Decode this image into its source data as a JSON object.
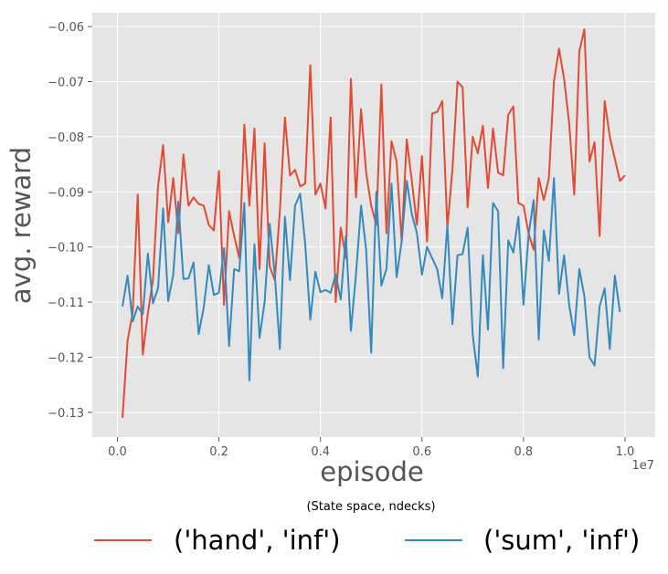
{
  "chart_data": {
    "type": "line",
    "xlabel": "episode",
    "ylabel": "avg. reward",
    "x_offset_text": "1e7",
    "xlim": [
      -0.0495,
      1.0595
    ],
    "ylim": [
      -0.1345,
      -0.0575
    ],
    "xticks": [
      0.0,
      0.2,
      0.4,
      0.6,
      0.8,
      1.0
    ],
    "xtick_labels": [
      "0.0",
      "0.2",
      "0.4",
      "0.6",
      "0.8",
      "1.0"
    ],
    "yticks": [
      -0.13,
      -0.12,
      -0.11,
      -0.1,
      -0.09,
      -0.08,
      -0.07,
      -0.06
    ],
    "ytick_labels": [
      "−0.13",
      "−0.12",
      "−0.11",
      "−0.10",
      "−0.09",
      "−0.08",
      "−0.07",
      "−0.06"
    ],
    "grid": true,
    "legend_title": "(State space, ndecks)",
    "legend_position": "bottom",
    "colors": {
      "background": "#e5e5e5",
      "grid": "#ffffff",
      "tick": "#555555"
    },
    "x_units": "fraction of 1e7 episodes",
    "x": [
      0.01,
      0.02,
      0.03,
      0.04,
      0.05,
      0.06,
      0.07,
      0.08,
      0.09,
      0.1,
      0.11,
      0.12,
      0.13,
      0.14,
      0.15,
      0.16,
      0.17,
      0.18,
      0.19,
      0.2,
      0.21,
      0.22,
      0.23,
      0.24,
      0.25,
      0.26,
      0.27,
      0.28,
      0.29,
      0.3,
      0.31,
      0.32,
      0.33,
      0.34,
      0.35,
      0.36,
      0.37,
      0.38,
      0.39,
      0.4,
      0.41,
      0.42,
      0.43,
      0.44,
      0.45,
      0.46,
      0.47,
      0.48,
      0.49,
      0.5,
      0.51,
      0.52,
      0.53,
      0.54,
      0.55,
      0.56,
      0.57,
      0.58,
      0.59,
      0.6,
      0.61,
      0.62,
      0.63,
      0.64,
      0.65,
      0.66,
      0.67,
      0.68,
      0.69,
      0.7,
      0.71,
      0.72,
      0.73,
      0.74,
      0.75,
      0.76,
      0.77,
      0.78,
      0.79,
      0.8,
      0.81,
      0.82,
      0.83,
      0.84,
      0.85,
      0.86,
      0.87,
      0.88,
      0.89,
      0.9,
      0.91,
      0.92,
      0.93,
      0.94,
      0.95,
      0.96,
      0.97,
      0.98,
      0.99,
      1.0
    ],
    "series": [
      {
        "name": "('hand', 'inf')",
        "color": "#E24A33",
        "values": [
          -0.131,
          -0.117,
          -0.112,
          -0.0905,
          -0.1195,
          -0.112,
          -0.106,
          -0.089,
          -0.0815,
          -0.0955,
          -0.0875,
          -0.0975,
          -0.0832,
          -0.0925,
          -0.091,
          -0.0922,
          -0.0925,
          -0.096,
          -0.097,
          -0.0862,
          -0.1105,
          -0.0935,
          -0.098,
          -0.102,
          -0.0778,
          -0.0925,
          -0.0785,
          -0.104,
          -0.0812,
          -0.1035,
          -0.106,
          -0.0935,
          -0.0765,
          -0.087,
          -0.086,
          -0.089,
          -0.0885,
          -0.067,
          -0.0905,
          -0.0885,
          -0.093,
          -0.0765,
          -0.11,
          -0.0965,
          -0.102,
          -0.0695,
          -0.091,
          -0.075,
          -0.0865,
          -0.0925,
          -0.096,
          -0.0705,
          -0.0975,
          -0.0808,
          -0.0845,
          -0.099,
          -0.0805,
          -0.088,
          -0.096,
          -0.0835,
          -0.099,
          -0.0758,
          -0.0755,
          -0.0735,
          -0.0965,
          -0.086,
          -0.07,
          -0.071,
          -0.0928,
          -0.08,
          -0.083,
          -0.078,
          -0.0893,
          -0.0785,
          -0.0865,
          -0.087,
          -0.076,
          -0.0745,
          -0.092,
          -0.0925,
          -0.0975,
          -0.1005,
          -0.0875,
          -0.0915,
          -0.0875,
          -0.07,
          -0.064,
          -0.0695,
          -0.0775,
          -0.0905,
          -0.0645,
          -0.0605,
          -0.0845,
          -0.081,
          -0.098,
          -0.0735,
          -0.08,
          -0.084,
          -0.088,
          -0.087
        ]
      },
      {
        "name": "('sum', 'inf')",
        "color": "#348ABD",
        "values": [
          -0.1108,
          -0.1052,
          -0.1135,
          -0.1108,
          -0.1122,
          -0.1012,
          -0.1102,
          -0.1075,
          -0.093,
          -0.1098,
          -0.105,
          -0.0918,
          -0.1058,
          -0.1057,
          -0.1028,
          -0.1158,
          -0.111,
          -0.1033,
          -0.1087,
          -0.1083,
          -0.1002,
          -0.118,
          -0.104,
          -0.1044,
          -0.092,
          -0.1242,
          -0.0995,
          -0.1165,
          -0.11,
          -0.0958,
          -0.105,
          -0.1185,
          -0.0945,
          -0.106,
          -0.0925,
          -0.0903,
          -0.0995,
          -0.1132,
          -0.1045,
          -0.1082,
          -0.1078,
          -0.1083,
          -0.105,
          -0.1095,
          -0.098,
          -0.1152,
          -0.105,
          -0.0925,
          -0.1005,
          -0.1192,
          -0.09,
          -0.107,
          -0.104,
          -0.0885,
          -0.1055,
          -0.099,
          -0.088,
          -0.094,
          -0.0975,
          -0.105,
          -0.1,
          -0.102,
          -0.104,
          -0.1093,
          -0.096,
          -0.114,
          -0.1015,
          -0.1013,
          -0.0965,
          -0.116,
          -0.1235,
          -0.1015,
          -0.115,
          -0.092,
          -0.0935,
          -0.122,
          -0.0988,
          -0.101,
          -0.0945,
          -0.1105,
          -0.0978,
          -0.0915,
          -0.1168,
          -0.097,
          -0.1025,
          -0.0875,
          -0.1085,
          -0.1015,
          -0.1105,
          -0.116,
          -0.104,
          -0.109,
          -0.12,
          -0.1215,
          -0.1108,
          -0.1075,
          -0.1185,
          -0.1052,
          -0.1118,
          null
        ]
      }
    ]
  }
}
